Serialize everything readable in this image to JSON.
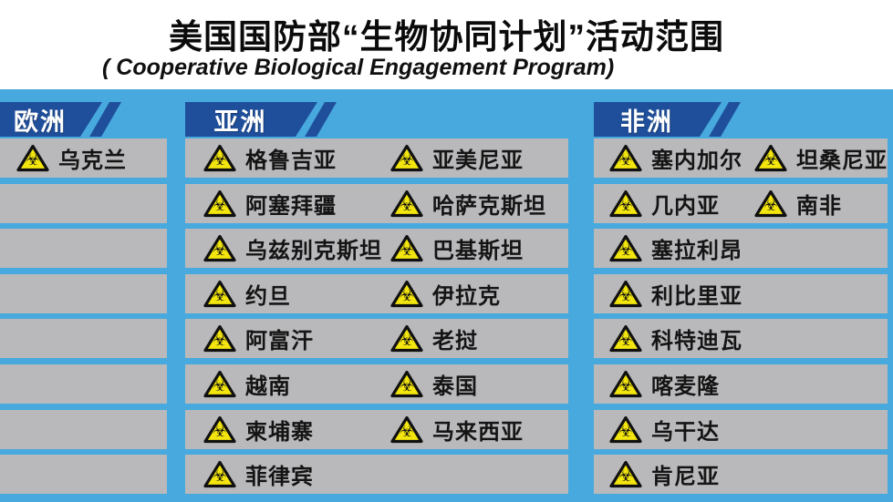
{
  "title": "美国国防部“生物协同计划”活动范围",
  "subtitle": "( Cooperative Biological Engagement Program)",
  "colors": {
    "background_blue": "#47a9dd",
    "banner_blue": "#1f4f9b",
    "row_gray": "#b9b9bc",
    "hazard_yellow": "#f3e50e",
    "text_black": "#141414",
    "banner_text": "#ffffff"
  },
  "icons": {
    "biohazard_glyph": "☣",
    "biohazard_name": "biohazard-warning-triangle"
  },
  "columns": [
    {
      "id": "europe",
      "label": "欧洲",
      "rows": [
        [
          "乌克兰"
        ],
        [],
        [],
        [],
        [],
        [],
        [],
        []
      ]
    },
    {
      "id": "asia",
      "label": "亚洲",
      "rows": [
        [
          "格鲁吉亚",
          "亚美尼亚"
        ],
        [
          "阿塞拜疆",
          "哈萨克斯坦"
        ],
        [
          "乌兹别克斯坦",
          "巴基斯坦"
        ],
        [
          "约旦",
          "伊拉克"
        ],
        [
          "阿富汗",
          "老挝"
        ],
        [
          "越南",
          "泰国"
        ],
        [
          "柬埔寨",
          "马来西亚"
        ],
        [
          "菲律宾"
        ]
      ]
    },
    {
      "id": "africa",
      "label": "非洲",
      "rows": [
        [
          "塞内加尔",
          "坦桑尼亚"
        ],
        [
          "几内亚",
          "南非"
        ],
        [
          "塞拉利昂"
        ],
        [
          "利比里亚"
        ],
        [
          "科特迪瓦"
        ],
        [
          "喀麦隆"
        ],
        [
          "乌干达"
        ],
        [
          "肯尼亚"
        ]
      ]
    }
  ]
}
